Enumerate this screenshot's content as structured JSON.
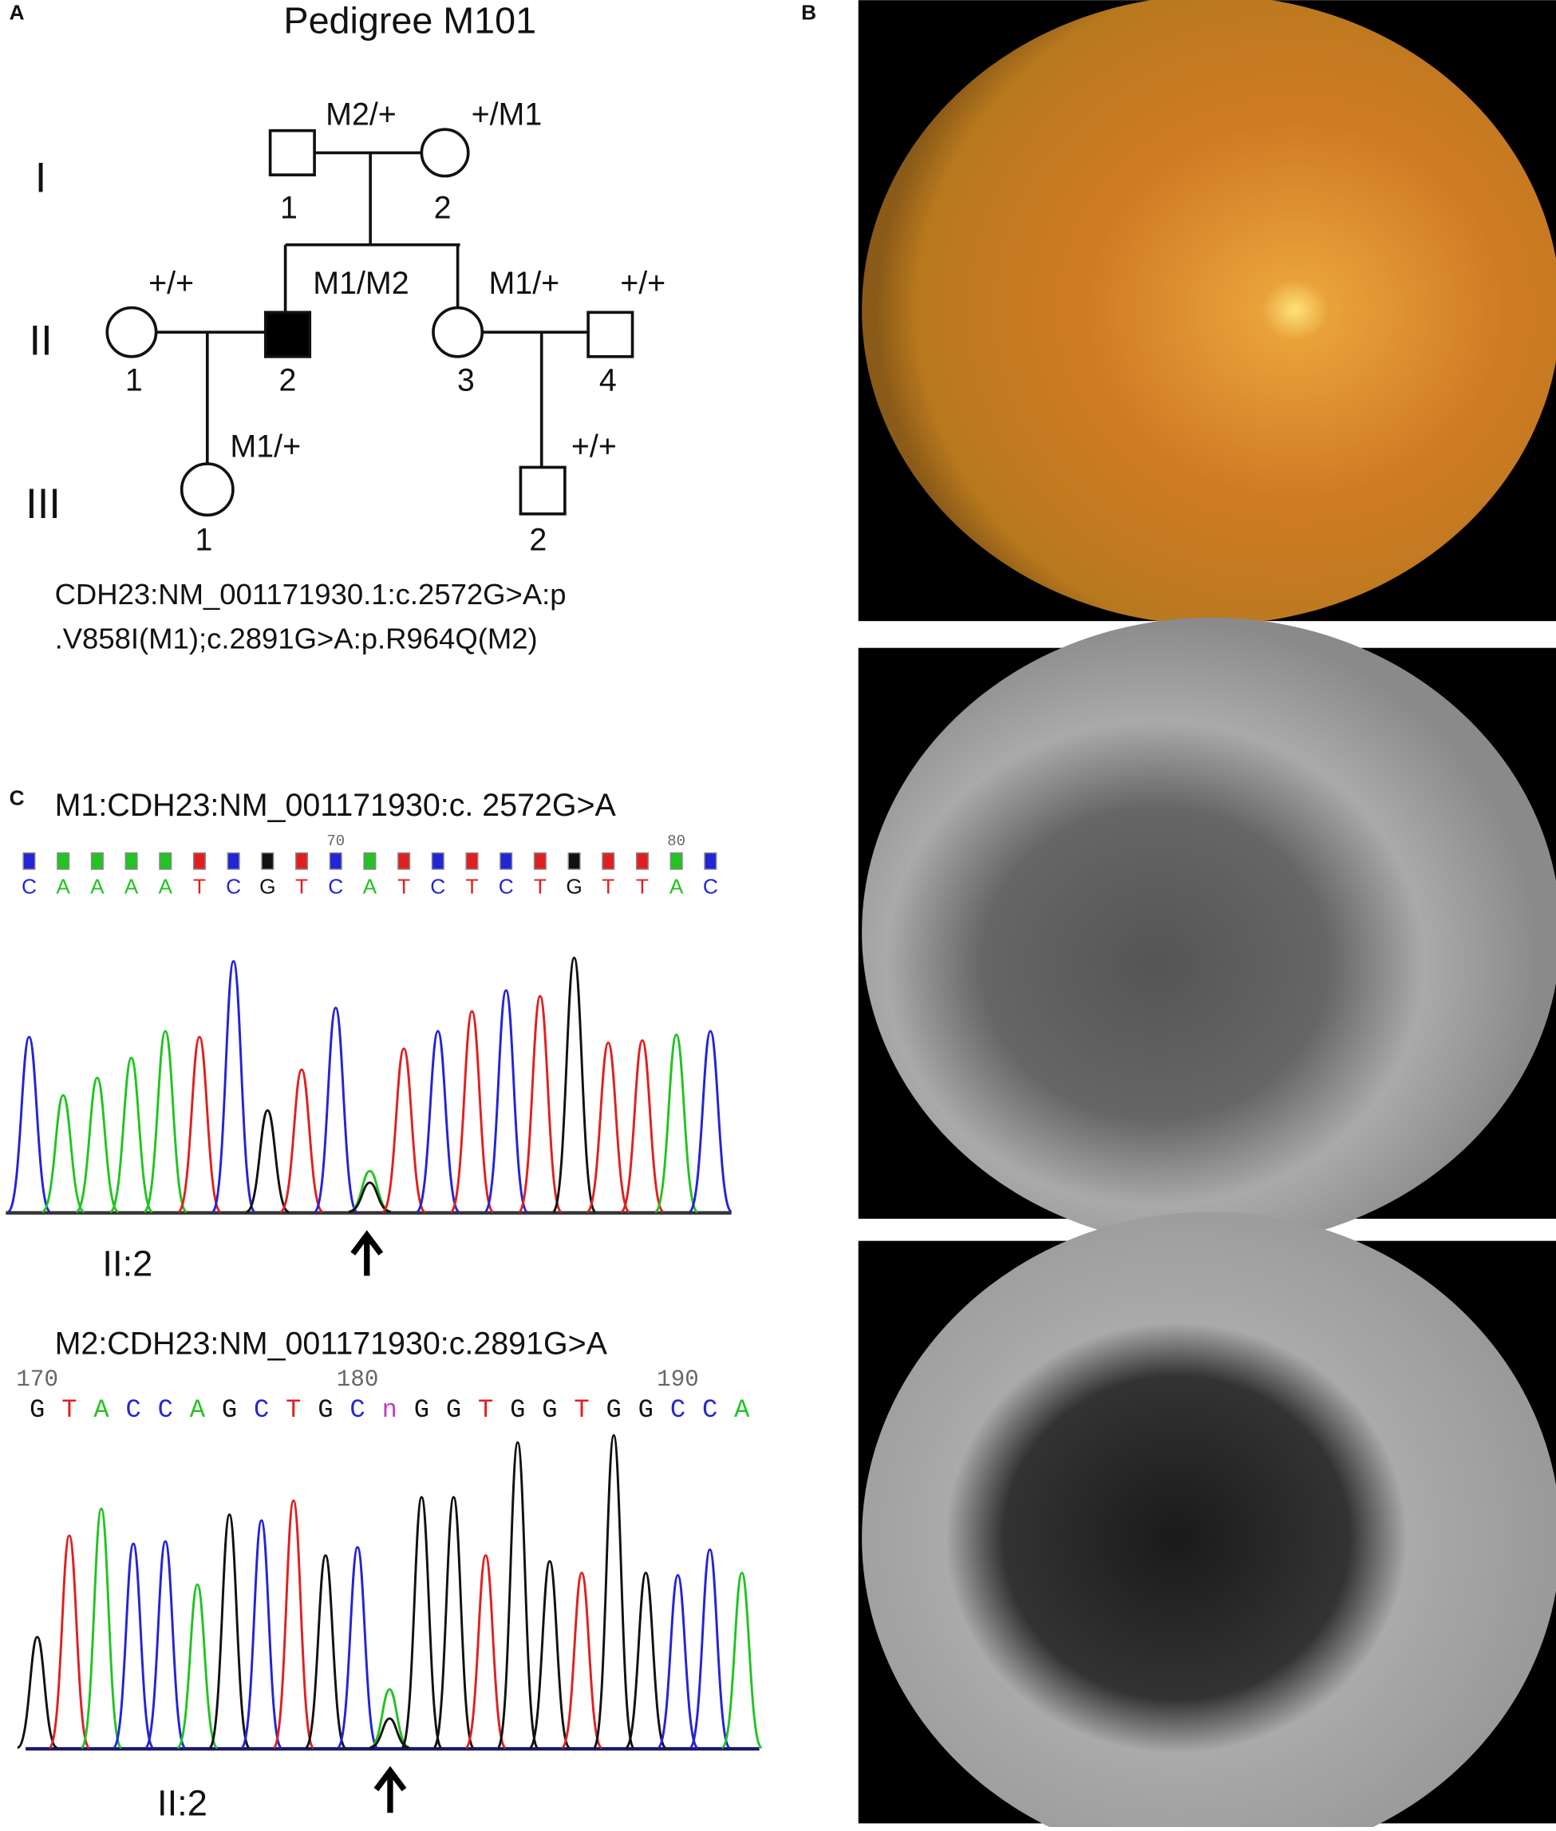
{
  "panels": {
    "a": "A",
    "b": "B",
    "c": "C"
  },
  "pedigree": {
    "title": "Pedigree M101",
    "generations": [
      {
        "label": "I",
        "individuals": [
          {
            "number": "1",
            "genotype": "M2/+"
          },
          {
            "number": "2",
            "genotype": "+/M1"
          }
        ]
      },
      {
        "label": "II",
        "individuals": [
          {
            "number": "1",
            "genotype": "+/+"
          },
          {
            "number": "2",
            "genotype": "M1/M2"
          },
          {
            "number": "3",
            "genotype": "M1/+"
          },
          {
            "number": "4",
            "genotype": "+/+"
          }
        ]
      },
      {
        "label": "III",
        "individuals": [
          {
            "number": "1",
            "genotype": "M1/+"
          },
          {
            "number": "2",
            "genotype": "+/+"
          }
        ]
      }
    ],
    "variant": [
      "CDH23:NM_001171930.1:c.2572G>A:p",
      ".V858I(M1);c.2891G>A:p.R964Q(M2)"
    ]
  },
  "base_colors": {
    "A": "#22c322",
    "C": "#2323d8",
    "G": "#111111",
    "T": "#e02020",
    "n": "#c040c0"
  },
  "chromatograms": [
    {
      "title": "M1:CDH23:NM_001171930:c. 2572G>A",
      "positions": [
        "70",
        "80"
      ],
      "sequence": [
        "C",
        "A",
        "A",
        "A",
        "A",
        "T",
        "C",
        "G",
        "T",
        "C",
        "A",
        "T",
        "C",
        "T",
        "C",
        "T",
        "G",
        "T",
        "T",
        "A",
        "C"
      ],
      "traces": [
        {
          "C": 150
        },
        {
          "A": 100
        },
        {
          "A": 115
        },
        {
          "A": 132
        },
        {
          "A": 155
        },
        {
          "T": 150
        },
        {
          "C": 215
        },
        {
          "G": 87
        },
        {
          "T": 122
        },
        {
          "C": 175
        },
        {
          "A": 35,
          "G": 25
        },
        {
          "T": 140
        },
        {
          "C": 155
        },
        {
          "T": 172
        },
        {
          "C": 190
        },
        {
          "T": 185
        },
        {
          "G": 218
        },
        {
          "T": 145
        },
        {
          "T": 147
        },
        {
          "A": 152
        },
        {
          "C": 155
        }
      ],
      "sample": "II:2"
    },
    {
      "title": "M2:CDH23:NM_001171930:c.2891G>A",
      "positions": [
        "170",
        "180",
        "190"
      ],
      "sequence": [
        "G",
        "T",
        "A",
        "C",
        "C",
        "A",
        "G",
        "C",
        "T",
        "G",
        "C",
        "n",
        "G",
        "G",
        "T",
        "G",
        "G",
        "T",
        "G",
        "G",
        "C",
        "C",
        "A"
      ],
      "traces": [
        {
          "G": 95
        },
        {
          "T": 182
        },
        {
          "A": 205
        },
        {
          "C": 175
        },
        {
          "C": 177
        },
        {
          "A": 140
        },
        {
          "G": 200
        },
        {
          "C": 195
        },
        {
          "T": 212
        },
        {
          "G": 165
        },
        {
          "C": 172
        },
        {
          "A": 50,
          "G": 25
        },
        {
          "G": 215
        },
        {
          "G": 215
        },
        {
          "T": 165
        },
        {
          "G": 262
        },
        {
          "G": 160
        },
        {
          "T": 150
        },
        {
          "G": 268
        },
        {
          "G": 150
        },
        {
          "C": 148
        },
        {
          "C": 170
        },
        {
          "A": 150
        }
      ],
      "sample": "II:2"
    }
  ]
}
